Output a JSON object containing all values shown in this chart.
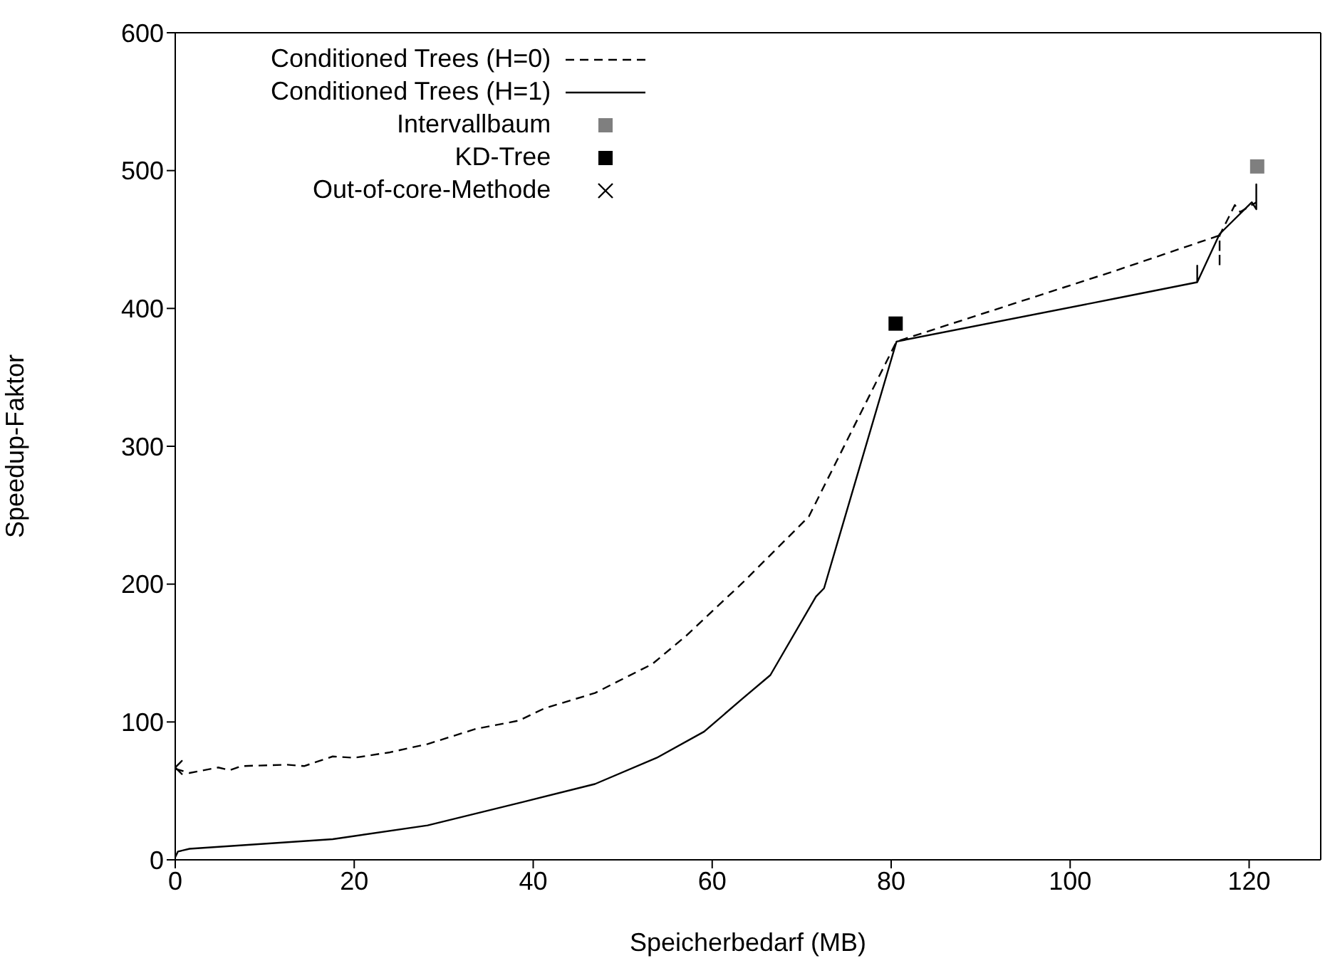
{
  "chart_data": {
    "type": "line",
    "xlabel": "Speicherbedarf (MB)",
    "ylabel": "Speedup-Faktor",
    "xlim": [
      0,
      128
    ],
    "xticks": [
      0,
      20,
      40,
      60,
      80,
      100,
      120
    ],
    "ylim": [
      0,
      600
    ],
    "yticks": [
      0,
      100,
      200,
      300,
      400,
      500,
      600
    ],
    "grid": false,
    "legend": "top left",
    "series": [
      {
        "name": "Conditioned Trees (H=0)",
        "line_style": "dashed",
        "color": "#000000",
        "x": [
          0,
          1.6,
          4.8,
          6.1,
          7.4,
          12.5,
          14.4,
          17.6,
          20,
          24,
          28.2,
          33.6,
          38.4,
          41.3,
          46.9,
          53.3,
          57,
          63.4,
          70.8,
          80.6,
          104.9,
          116.7,
          116.7,
          116.7,
          118.4,
          119,
          120.8
        ],
        "values": [
          66,
          63,
          67,
          65,
          68,
          69,
          68,
          75,
          74,
          78,
          84,
          95,
          101,
          110,
          121,
          142,
          162,
          201,
          249,
          376,
          427,
          453,
          430,
          453,
          475,
          470,
          477
        ]
      },
      {
        "name": "Conditioned Trees (H=1)",
        "line_style": "solid",
        "color": "#000000",
        "x": [
          0,
          0.3,
          1.6,
          17.6,
          28.2,
          38.9,
          46.9,
          53.8,
          59.1,
          63.4,
          66.5,
          71.6,
          72.5,
          80.6,
          104.9,
          114.2,
          114.2,
          114.2,
          116.7,
          120.3,
          120.8,
          120.8,
          120.8
        ],
        "values": [
          2,
          6,
          8,
          15,
          25,
          42,
          55,
          74,
          93,
          117,
          134,
          191,
          197,
          376,
          407,
          419,
          431,
          419,
          454,
          477,
          472,
          490,
          477
        ]
      },
      {
        "name": "Intervallbaum",
        "type": "scatter",
        "marker": "square",
        "color": "#7f7f7f",
        "x": [
          120.9
        ],
        "values": [
          503
        ]
      },
      {
        "name": "KD-Tree",
        "type": "scatter",
        "marker": "square",
        "color": "#000000",
        "x": [
          80.5
        ],
        "values": [
          389
        ]
      },
      {
        "name": "Out-of-core-Methode",
        "type": "scatter",
        "marker": "cross",
        "color": "#000000",
        "x": [
          0
        ],
        "values": [
          67
        ]
      }
    ]
  }
}
